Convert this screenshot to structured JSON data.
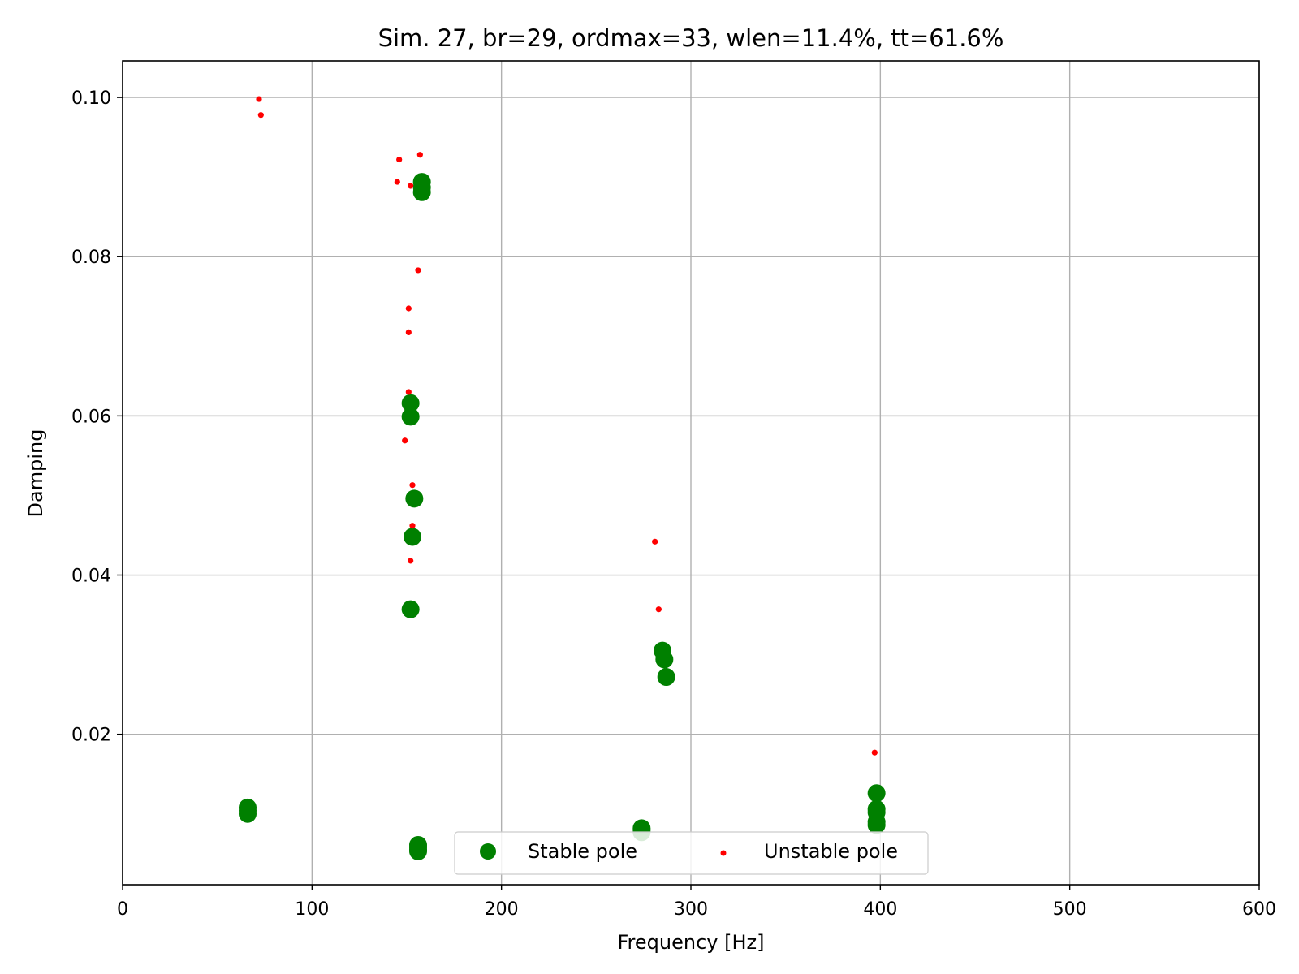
{
  "chart_data": {
    "type": "scatter",
    "title": "Sim. 27, br=29, ordmax=33, wlen=11.4%, tt=61.6%",
    "xlabel": "Frequency [Hz]",
    "ylabel": "Damping",
    "xlim": [
      0,
      600
    ],
    "ylim": [
      0.0011,
      0.1046
    ],
    "x_ticks": [
      0,
      100,
      200,
      300,
      400,
      500,
      600
    ],
    "x_tick_labels": [
      "0",
      "100",
      "200",
      "300",
      "400",
      "500",
      "600"
    ],
    "y_ticks": [
      0.02,
      0.04,
      0.06,
      0.08,
      0.1
    ],
    "y_tick_labels": [
      "0.02",
      "0.04",
      "0.06",
      "0.08",
      "0.10"
    ],
    "grid": true,
    "legend_position": "bottom-center",
    "series": [
      {
        "name": "Stable pole",
        "color": "#008000",
        "marker": "large-circle",
        "points": [
          [
            66,
            0.0108
          ],
          [
            66,
            0.0104
          ],
          [
            66,
            0.01
          ],
          [
            156,
            0.0061
          ],
          [
            156,
            0.0058
          ],
          [
            156,
            0.0055
          ],
          [
            156,
            0.0053
          ],
          [
            274,
            0.0082
          ],
          [
            274,
            0.008
          ],
          [
            274,
            0.0077
          ],
          [
            398,
            0.0126
          ],
          [
            398,
            0.0106
          ],
          [
            398,
            0.0102
          ],
          [
            398,
            0.009
          ],
          [
            398,
            0.0086
          ],
          [
            285,
            0.0305
          ],
          [
            286,
            0.0294
          ],
          [
            287,
            0.0272
          ],
          [
            152,
            0.0357
          ],
          [
            153,
            0.0448
          ],
          [
            154,
            0.0496
          ],
          [
            152,
            0.0599
          ],
          [
            152,
            0.0616
          ],
          [
            158,
            0.0894
          ],
          [
            158,
            0.0887
          ],
          [
            158,
            0.0881
          ]
        ]
      },
      {
        "name": "Unstable pole",
        "color": "#ff0000",
        "marker": "small-dot",
        "points": [
          [
            72,
            0.0998
          ],
          [
            73,
            0.0978
          ],
          [
            146,
            0.0922
          ],
          [
            157,
            0.0928
          ],
          [
            145,
            0.0894
          ],
          [
            152,
            0.0889
          ],
          [
            156,
            0.0783
          ],
          [
            151,
            0.0735
          ],
          [
            151,
            0.0705
          ],
          [
            151,
            0.063
          ],
          [
            149,
            0.0569
          ],
          [
            153,
            0.0513
          ],
          [
            153,
            0.0462
          ],
          [
            152,
            0.0418
          ],
          [
            281,
            0.0442
          ],
          [
            283,
            0.0357
          ],
          [
            397,
            0.0177
          ]
        ]
      }
    ]
  }
}
